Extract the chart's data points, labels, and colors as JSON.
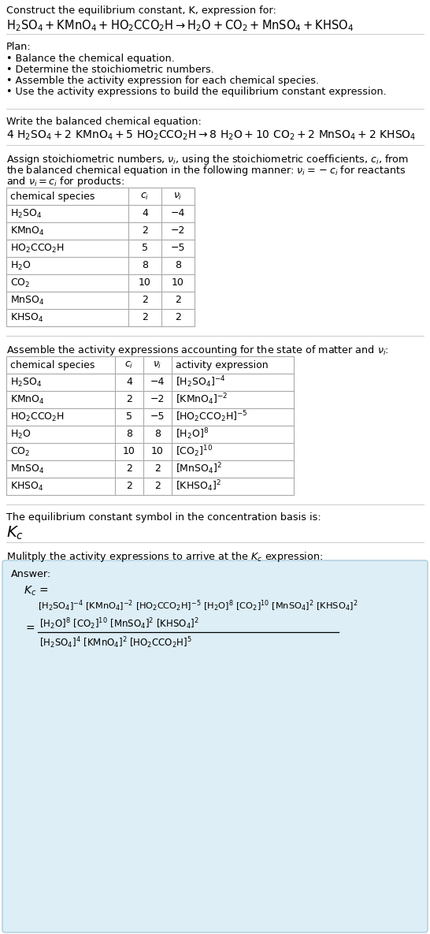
{
  "title_line1": "Construct the equilibrium constant, K, expression for:",
  "plan_header": "Plan:",
  "plan_items": [
    "• Balance the chemical equation.",
    "• Determine the stoichiometric numbers.",
    "• Assemble the activity expression for each chemical species.",
    "• Use the activity expressions to build the equilibrium constant expression."
  ],
  "balanced_header": "Write the balanced chemical equation:",
  "stoich_header_line1": "Assign stoichiometric numbers, νi, using the stoichiometric coefficients, ci, from",
  "stoich_header_line2": "the balanced chemical equation in the following manner: νi = −ci for reactants",
  "stoich_header_line3": "and νi = ci for products:",
  "table1_rows": [
    [
      "H₂SO₄",
      "4",
      "−4"
    ],
    [
      "KMnO₄",
      "2",
      "−2"
    ],
    [
      "HO₂CCO₂H",
      "5",
      "−5"
    ],
    [
      "H₂O",
      "8",
      "8"
    ],
    [
      "CO₂",
      "10",
      "10"
    ],
    [
      "MnSO₄",
      "2",
      "2"
    ],
    [
      "KHSO₄",
      "2",
      "2"
    ]
  ],
  "table2_rows": [
    [
      "H₂SO₄",
      "4",
      "−4"
    ],
    [
      "KMnO₄",
      "2",
      "−2"
    ],
    [
      "HO₂CCO₂H",
      "5",
      "−5"
    ],
    [
      "H₂O",
      "8",
      "8"
    ],
    [
      "CO₂",
      "10",
      "10"
    ],
    [
      "MnSO₄",
      "2",
      "2"
    ],
    [
      "KHSO₄",
      "2",
      "2"
    ]
  ],
  "kc_header": "The equilibrium constant symbol in the concentration basis is:",
  "multiply_header": "Mulitply the activity expressions to arrive at the Kc expression:",
  "answer_box_color": "#ddeef6",
  "answer_box_border": "#aaccdd",
  "bg_color": "#ffffff",
  "table_border_color": "#aaaaaa",
  "hline_color": "#cccccc"
}
